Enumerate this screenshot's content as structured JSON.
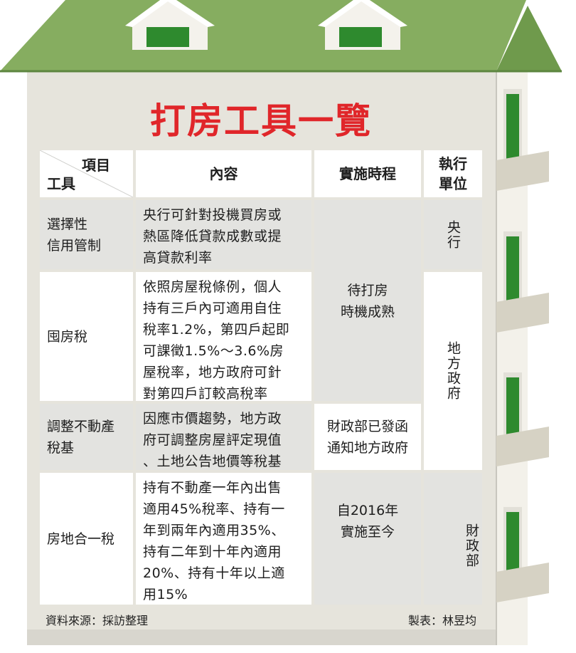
{
  "title": "打房工具一覽",
  "table": {
    "header": {
      "corner_top": "項目",
      "corner_bottom": "工具",
      "content": "內容",
      "schedule": "實施時程",
      "unit": "執行\n單位"
    },
    "rows": [
      {
        "tool": "選擇性\n信用管制",
        "content": "央行可針對投機買房或\n熱區降低貸款成數或提\n高貸款利率"
      },
      {
        "tool": "囤房稅",
        "content": "依照房屋稅條例，個人\n持有三戶內可適用自住\n稅率1.2%，第四戶起即\n可課徵1.5%～3.6%房\n屋稅率，地方政府可針\n對第四戶訂較高稅率"
      },
      {
        "tool": "調整不動產\n稅基",
        "content": "因應市價趨勢，地方政\n府可調整房屋評定現值\n、土地公告地價等稅基"
      },
      {
        "tool": "房地合一稅",
        "content": "持有不動產一年內出售\n適用45%稅率、持有一\n年到兩年內適用35%、\n持有二年到十年內適用\n20%、持有十年以上適\n用15%"
      }
    ],
    "schedules": {
      "rows_1_2": "待打房\n時機成熟",
      "row_3": "財政部已發函\n通知地方政府",
      "row_4": "自2016年\n實施至今"
    },
    "units": {
      "row_1": "央行",
      "rows_2_3": "地方政府",
      "row_4": "財政部"
    }
  },
  "footer": {
    "source": "資料來源：採訪整理",
    "credit": "製表：林昱均"
  },
  "colors": {
    "title": "#e0262a",
    "roof": "#86ad60",
    "window": "#2e8a2e",
    "wall": "#e6e4dc"
  }
}
